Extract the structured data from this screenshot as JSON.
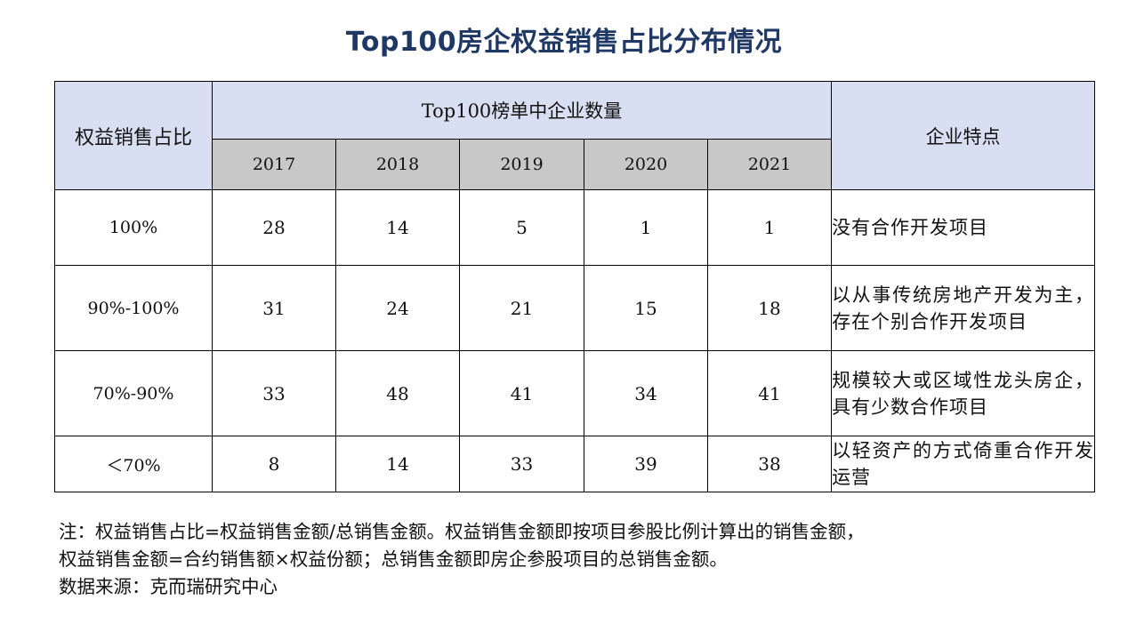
{
  "title": "Top100房企权益销售占比分布情况",
  "table": {
    "corner_header": "权益销售占比",
    "group_header": "Top100榜单中企业数量",
    "feature_header": "企业特点",
    "years": [
      "2017",
      "2018",
      "2019",
      "2020",
      "2021"
    ],
    "rows": [
      {
        "ratio": "100%",
        "values": [
          "28",
          "14",
          "5",
          "1",
          "1"
        ],
        "feature": "没有合作开发项目"
      },
      {
        "ratio": "90%-100%",
        "values": [
          "31",
          "24",
          "21",
          "15",
          "18"
        ],
        "feature": "以从事传统房地产开发为主，存在个别合作开发项目"
      },
      {
        "ratio": "70%-90%",
        "values": [
          "33",
          "48",
          "41",
          "34",
          "41"
        ],
        "feature": "规模较大或区域性龙头房企，具有少数合作项目"
      },
      {
        "ratio": "＜70%",
        "values": [
          "8",
          "14",
          "33",
          "39",
          "38"
        ],
        "feature": "以轻资产的方式倚重合作开发运营"
      }
    ]
  },
  "notes": {
    "line1": "注：权益销售占比=权益销售金额/总销售金额。权益销售金额即按项目参股比例计算出的销售金额，",
    "line2": "权益销售金额=合约销售额×权益份额；总销售金额即房企参股项目的总销售金额。",
    "line3": "数据来源：克而瑞研究中心"
  },
  "colors": {
    "title": "#1f3864",
    "header_blue": "#d9dff3",
    "header_gray": "#c8c8c8"
  },
  "chart_data": {
    "type": "table",
    "title": "Top100房企权益销售占比分布情况",
    "columns": [
      "权益销售占比",
      "2017",
      "2018",
      "2019",
      "2020",
      "2021",
      "企业特点"
    ],
    "categories": [
      "100%",
      "90%-100%",
      "70%-90%",
      "＜70%"
    ],
    "series": [
      {
        "name": "2017",
        "values": [
          28,
          31,
          33,
          8
        ]
      },
      {
        "name": "2018",
        "values": [
          14,
          24,
          48,
          14
        ]
      },
      {
        "name": "2019",
        "values": [
          5,
          21,
          41,
          33
        ]
      },
      {
        "name": "2020",
        "values": [
          1,
          15,
          34,
          39
        ]
      },
      {
        "name": "2021",
        "values": [
          1,
          18,
          41,
          38
        ]
      }
    ]
  }
}
